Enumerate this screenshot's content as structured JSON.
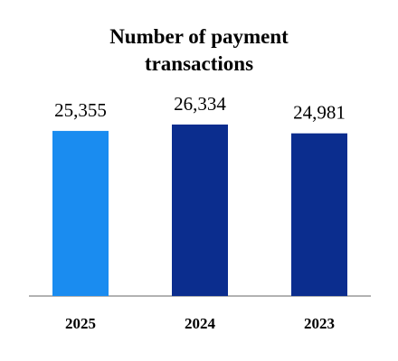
{
  "chart_data": {
    "type": "bar",
    "title": "Number of payment transactions",
    "categories": [
      "2025",
      "2024",
      "2023"
    ],
    "values": [
      25355,
      26334,
      24981
    ],
    "value_labels": [
      "25,355",
      "26,334",
      "24,981"
    ],
    "colors": [
      "#1a8cf0",
      "#0b2d8e",
      "#0b2d8e"
    ]
  }
}
